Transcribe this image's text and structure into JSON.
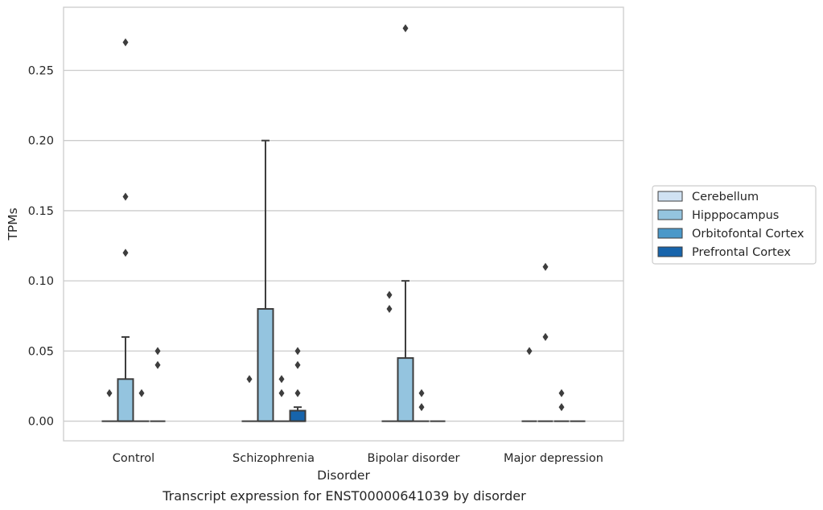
{
  "chart_data": {
    "type": "box",
    "caption": "Transcript expression for ENST00000641039 by disorder",
    "xlabel": "Disorder",
    "ylabel": "TPMs",
    "ylim": [
      -0.014,
      0.295
    ],
    "yticks": [
      0.0,
      0.05,
      0.1,
      0.15,
      0.2,
      0.25
    ],
    "ytick_labels": [
      "0.00",
      "0.05",
      "0.10",
      "0.15",
      "0.20",
      "0.25"
    ],
    "grid": "horizontal",
    "legend_position": "right",
    "categories": [
      "Control",
      "Schizophrenia",
      "Bipolar disorder",
      "Major depression"
    ],
    "series": [
      {
        "name": "Cerebellum",
        "color": "#d0e1f2",
        "boxes": [
          {
            "q1": 0.0,
            "median": 0.0,
            "q3": 0.0,
            "whislo": 0.0,
            "whishi": 0.0,
            "fliers": [
              0.02
            ]
          },
          {
            "q1": 0.0,
            "median": 0.0,
            "q3": 0.0,
            "whislo": 0.0,
            "whishi": 0.0,
            "fliers": [
              0.03
            ]
          },
          {
            "q1": 0.0,
            "median": 0.0,
            "q3": 0.0,
            "whislo": 0.0,
            "whishi": 0.0,
            "fliers": [
              0.08,
              0.09
            ]
          },
          {
            "q1": 0.0,
            "median": 0.0,
            "q3": 0.0,
            "whislo": 0.0,
            "whishi": 0.0,
            "fliers": [
              0.05
            ]
          }
        ]
      },
      {
        "name": "Hipppocampus",
        "color": "#94c4df",
        "boxes": [
          {
            "q1": 0.0,
            "median": 0.0,
            "q3": 0.03,
            "whislo": 0.0,
            "whishi": 0.06,
            "fliers": [
              0.12,
              0.16,
              0.27
            ]
          },
          {
            "q1": 0.0,
            "median": 0.0,
            "q3": 0.08,
            "whislo": 0.0,
            "whishi": 0.2,
            "fliers": []
          },
          {
            "q1": 0.0,
            "median": 0.0,
            "q3": 0.045,
            "whislo": 0.0,
            "whishi": 0.1,
            "fliers": [
              0.28
            ]
          },
          {
            "q1": 0.0,
            "median": 0.0,
            "q3": 0.0,
            "whislo": 0.0,
            "whishi": 0.0,
            "fliers": [
              0.06,
              0.11
            ]
          }
        ]
      },
      {
        "name": "Orbitofontal Cortex",
        "color": "#4a98c9",
        "boxes": [
          {
            "q1": 0.0,
            "median": 0.0,
            "q3": 0.0,
            "whislo": 0.0,
            "whishi": 0.0,
            "fliers": [
              0.02
            ]
          },
          {
            "q1": 0.0,
            "median": 0.0,
            "q3": 0.0,
            "whislo": 0.0,
            "whishi": 0.0,
            "fliers": [
              0.02,
              0.03
            ]
          },
          {
            "q1": 0.0,
            "median": 0.0,
            "q3": 0.0,
            "whislo": 0.0,
            "whishi": 0.0,
            "fliers": [
              0.01,
              0.02
            ]
          },
          {
            "q1": 0.0,
            "median": 0.0,
            "q3": 0.0,
            "whislo": 0.0,
            "whishi": 0.0,
            "fliers": [
              0.01,
              0.02
            ]
          }
        ]
      },
      {
        "name": "Prefrontal Cortex",
        "color": "#1764ab",
        "boxes": [
          {
            "q1": 0.0,
            "median": 0.0,
            "q3": 0.0,
            "whislo": 0.0,
            "whishi": 0.0,
            "fliers": [
              0.04,
              0.05
            ]
          },
          {
            "q1": 0.0,
            "median": 0.0,
            "q3": 0.0075,
            "whislo": 0.0,
            "whishi": 0.01,
            "fliers": [
              0.02,
              0.04,
              0.05
            ]
          },
          {
            "q1": 0.0,
            "median": 0.0,
            "q3": 0.0,
            "whislo": 0.0,
            "whishi": 0.0,
            "fliers": []
          },
          {
            "q1": 0.0,
            "median": 0.0,
            "q3": 0.0,
            "whislo": 0.0,
            "whishi": 0.0,
            "fliers": []
          }
        ]
      }
    ]
  },
  "colors": {
    "edge": "#3d3d3d",
    "grid": "#cccccc",
    "spine": "#cccccc",
    "text": "#262626"
  }
}
